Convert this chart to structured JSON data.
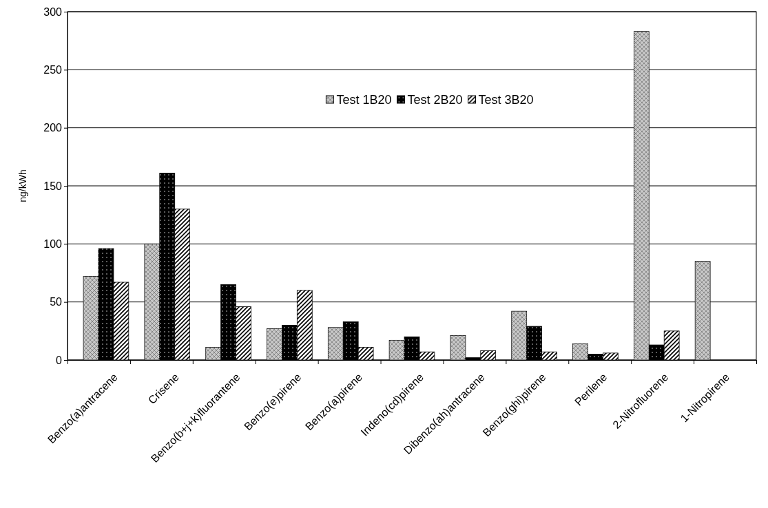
{
  "chart_data": {
    "type": "bar",
    "ylabel": "ng/kWh",
    "categories": [
      "Benzo(a)antracene",
      "Crisene",
      "Benzo(b+j+k)fluorantene",
      "Benzo(e)pirene",
      "Benzo(a)pirene",
      "Indeno(cd)pirene",
      "Dibenzo(ah)antracene",
      "Benzo(ghi)pirene",
      "Perilene",
      "2-Nitrofluorene",
      "1-Nitropirene"
    ],
    "series": [
      {
        "name": "Test 1B20",
        "color": "#c8c8c8",
        "values": [
          72,
          100,
          11,
          27,
          28,
          17,
          21,
          42,
          14,
          283,
          85
        ]
      },
      {
        "name": "Test 2B20",
        "color": "#000000",
        "values": [
          96,
          161,
          65,
          30,
          33,
          20,
          2,
          29,
          5,
          13,
          null
        ]
      },
      {
        "name": "Test 3B20",
        "color": "#ffffff",
        "values": [
          67,
          130,
          46,
          60,
          11,
          7,
          8,
          7,
          6,
          25,
          null
        ]
      }
    ],
    "ylim": [
      0,
      300
    ],
    "yticks": [
      0,
      50,
      100,
      150,
      200,
      250,
      300
    ],
    "grid": "y",
    "legend": "top"
  }
}
